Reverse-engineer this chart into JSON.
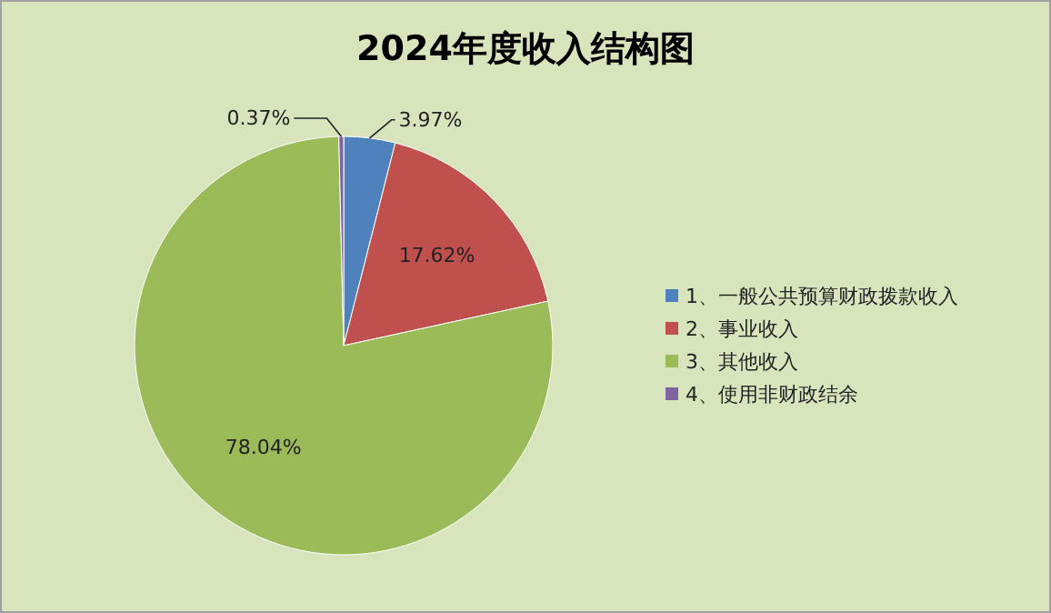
{
  "chart_data": {
    "type": "pie",
    "title": "2024年度收入结构图",
    "categories": [
      "1、一般公共预算财政拨款收入",
      "2、事业收入",
      "3、其他收入",
      "4、使用非财政结余"
    ],
    "values": [
      3.97,
      17.62,
      78.04,
      0.37
    ],
    "colors": [
      "#4f81bd",
      "#c0504d",
      "#9bbb59",
      "#8064a2"
    ],
    "value_labels": [
      "3.97%",
      "17.62%",
      "78.04%",
      "0.37%"
    ],
    "legend": "right"
  }
}
